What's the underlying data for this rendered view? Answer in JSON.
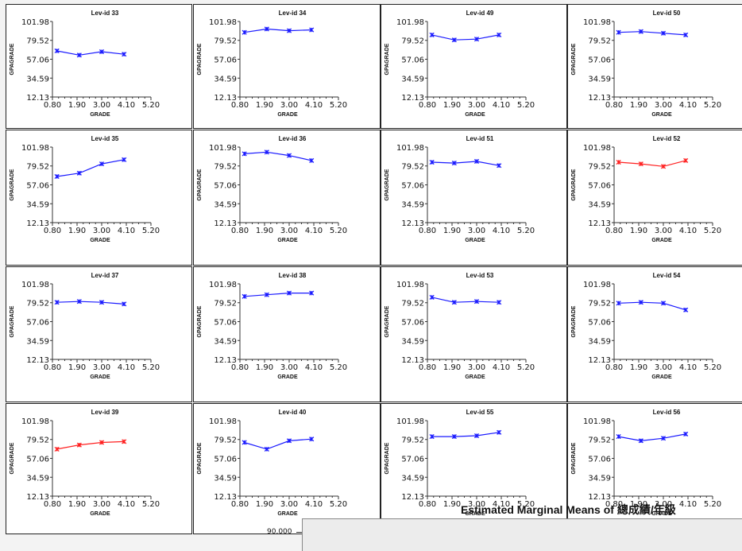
{
  "y_axis": {
    "label": "GPAGRADE",
    "ticks": [
      "101.98",
      "79.52",
      "57.06",
      "34.59",
      "12.13"
    ],
    "tick_values": [
      101.98,
      79.52,
      57.06,
      34.59,
      12.13
    ],
    "ylim": [
      12.13,
      101.98
    ]
  },
  "x_axis": {
    "label": "GRADE",
    "ticks": [
      "0.80",
      "1.90",
      "3.00",
      "4.10",
      "5.20"
    ],
    "tick_values": [
      0.8,
      1.9,
      3.0,
      4.1,
      5.2
    ],
    "xlim": [
      0.8,
      5.2
    ]
  },
  "colors": {
    "blue": "#1a1aff",
    "red": "#ff2020"
  },
  "bottom_text": {
    "em_title": "Estimated Marginal Means of 總成績/年級",
    "partial_ytick": "90.000",
    "partial_zero": "0"
  },
  "chart_data": [
    {
      "type": "line",
      "title": "Lev-id 33",
      "xlabel": "GRADE",
      "ylabel": "GPAGRADE",
      "color": "blue",
      "x": [
        1,
        2,
        3,
        4
      ],
      "values": [
        67,
        62,
        66,
        63
      ]
    },
    {
      "type": "line",
      "title": "Lev-id 34",
      "xlabel": "GRADE",
      "ylabel": "GPAGRADE",
      "color": "blue",
      "x": [
        1,
        2,
        3,
        4
      ],
      "values": [
        89,
        93,
        91,
        92
      ]
    },
    {
      "type": "line",
      "title": "Lev-id 49",
      "xlabel": "GRADE",
      "ylabel": "GPAGRADE",
      "color": "blue",
      "x": [
        1,
        2,
        3,
        4
      ],
      "values": [
        86,
        80,
        81,
        86
      ]
    },
    {
      "type": "line",
      "title": "Lev-id 50",
      "xlabel": "GRADE",
      "ylabel": "GPAGRADE",
      "color": "blue",
      "x": [
        1,
        2,
        3,
        4
      ],
      "values": [
        89,
        90,
        88,
        86
      ]
    },
    {
      "type": "line",
      "title": "Lev-id 35",
      "xlabel": "GRADE",
      "ylabel": "GPAGRADE",
      "color": "blue",
      "x": [
        1,
        2,
        3,
        4
      ],
      "values": [
        67,
        71,
        82,
        87
      ]
    },
    {
      "type": "line",
      "title": "Lev-id 36",
      "xlabel": "GRADE",
      "ylabel": "GPAGRADE",
      "color": "blue",
      "x": [
        1,
        2,
        3,
        4
      ],
      "values": [
        94,
        96,
        92,
        86
      ]
    },
    {
      "type": "line",
      "title": "Lev-id 51",
      "xlabel": "GRADE",
      "ylabel": "GPAGRADE",
      "color": "blue",
      "x": [
        1,
        2,
        3,
        4
      ],
      "values": [
        84,
        83,
        85,
        80
      ]
    },
    {
      "type": "line",
      "title": "Lev-id 52",
      "xlabel": "GRADE",
      "ylabel": "GPAGRADE",
      "color": "red",
      "x": [
        1,
        2,
        3,
        4
      ],
      "values": [
        84,
        82,
        79,
        86
      ]
    },
    {
      "type": "line",
      "title": "Lev-id 37",
      "xlabel": "GRADE",
      "ylabel": "GPAGRADE",
      "color": "blue",
      "x": [
        1,
        2,
        3,
        4
      ],
      "values": [
        80,
        81,
        80,
        78
      ]
    },
    {
      "type": "line",
      "title": "Lev-id 38",
      "xlabel": "GRADE",
      "ylabel": "GPAGRADE",
      "color": "blue",
      "x": [
        1,
        2,
        3,
        4
      ],
      "values": [
        87,
        89,
        91,
        91
      ]
    },
    {
      "type": "line",
      "title": "Lev-id 53",
      "xlabel": "GRADE",
      "ylabel": "GPAGRADE",
      "color": "blue",
      "x": [
        1,
        2,
        3,
        4
      ],
      "values": [
        86,
        80,
        81,
        80
      ]
    },
    {
      "type": "line",
      "title": "Lev-id 54",
      "xlabel": "GRADE",
      "ylabel": "GPAGRADE",
      "color": "blue",
      "x": [
        1,
        2,
        3,
        4
      ],
      "values": [
        79,
        80,
        79,
        71
      ]
    },
    {
      "type": "line",
      "title": "Lev-id 39",
      "xlabel": "GRADE",
      "ylabel": "GPAGRADE",
      "color": "red",
      "x": [
        1,
        2,
        3,
        4
      ],
      "values": [
        68,
        73,
        76,
        77
      ]
    },
    {
      "type": "line",
      "title": "Lev-id 40",
      "xlabel": "GRADE",
      "ylabel": "GPAGRADE",
      "color": "blue",
      "x": [
        1,
        2,
        3,
        4
      ],
      "values": [
        76,
        68,
        78,
        80
      ]
    },
    {
      "type": "line",
      "title": "Lev-id 55",
      "xlabel": "GRADE",
      "ylabel": "GPAGRADE",
      "color": "blue",
      "x": [
        1,
        2,
        3,
        4
      ],
      "values": [
        83,
        83,
        84,
        88
      ]
    },
    {
      "type": "line",
      "title": "Lev-id 56",
      "xlabel": "GRADE",
      "ylabel": "GPAGRADE",
      "color": "blue",
      "x": [
        1,
        2,
        3,
        4
      ],
      "values": [
        83,
        78,
        81,
        86
      ]
    }
  ]
}
